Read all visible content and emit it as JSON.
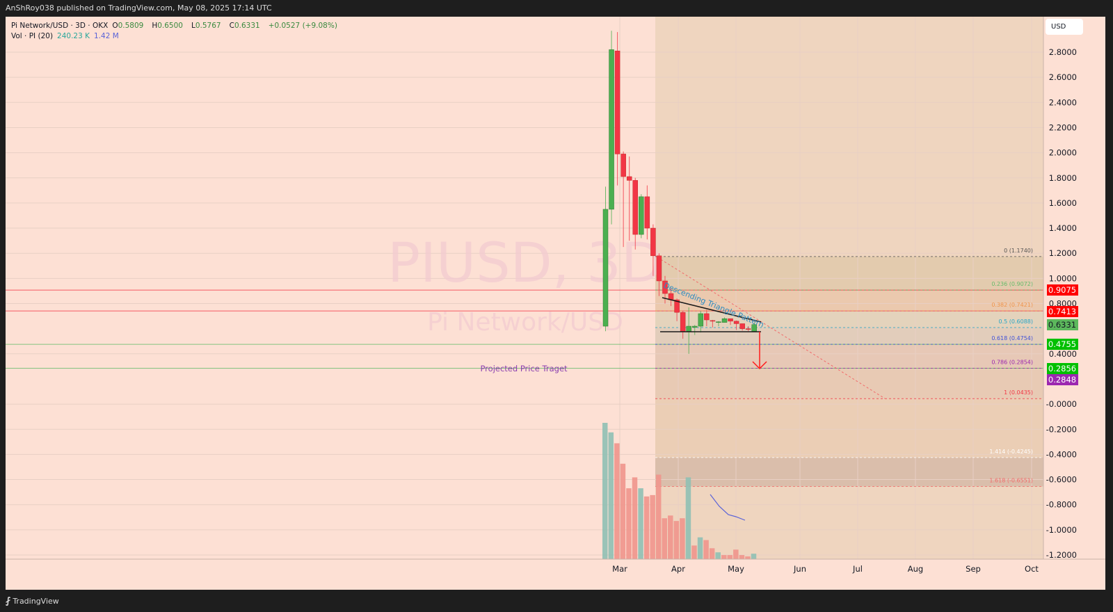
{
  "header": {
    "published_line": "AnShRoy038 published on TradingView.com, May 08, 2025 17:14 UTC"
  },
  "legend": {
    "symbol_line": "Pi Network/USD · 3D · OKX",
    "open_label": "O",
    "open": "0.5809",
    "high_label": "H",
    "high": "0.6500",
    "low_label": "L",
    "low": "0.5767",
    "close_label": "C",
    "close": "0.6331",
    "change": "+0.0527 (+9.08%)",
    "vol_label": "Vol · PI (20)",
    "vol_value": "240.23 K",
    "vol_ma": "1.42 M"
  },
  "currency_button": "USD",
  "watermark": {
    "ticker": "PIUSD, 3D",
    "name": "Pi Network/USD"
  },
  "footer": {
    "brand": "TradingView"
  },
  "annotations": {
    "pattern_label": "Descending Triangle Pattern",
    "target_label": "Projected Price Traget"
  },
  "colors": {
    "background": "#fde0d4",
    "up": "#4caf50",
    "down": "#f23645",
    "vol_up": "#8fc0b4",
    "vol_down": "#f0958c",
    "fib_zone": "#e8c9a8"
  },
  "chart_data": {
    "type": "candlestick",
    "title": "Pi Network/USD · 3D · OKX",
    "x_ticks": [
      "Mar",
      "Apr",
      "May",
      "Jun",
      "Jul",
      "Aug",
      "Sep",
      "Oct"
    ],
    "y_ticks": [
      "2.8000",
      "2.6000",
      "2.4000",
      "2.2000",
      "2.0000",
      "1.8000",
      "1.6000",
      "1.4000",
      "1.2000",
      "1.0000",
      "0.8000",
      "0.4000",
      "-0.0000",
      "-0.2000",
      "-0.4000",
      "-0.6000",
      "-0.8000",
      "-1.0000",
      "-1.2000"
    ],
    "ylim": [
      -1.25,
      3.0
    ],
    "price_labels": [
      {
        "value": "0.9075",
        "color": "#ff0000"
      },
      {
        "value": "0.7413",
        "color": "#ff0000"
      },
      {
        "value": "0.6331",
        "color": "#5cb85c"
      },
      {
        "value": "0.4755",
        "color": "#00c000"
      },
      {
        "value": "0.2856",
        "color": "#00c000"
      },
      {
        "value": "0.2848",
        "color": "#9c27b0"
      }
    ],
    "horizontal_lines": [
      {
        "price": 0.9075,
        "color": "#f23645"
      },
      {
        "price": 0.7413,
        "color": "#f23645"
      },
      {
        "price": 0.4755,
        "color": "#66bb6a"
      },
      {
        "price": 0.2856,
        "color": "#66bb6a"
      }
    ],
    "fib_levels": [
      {
        "ratio": "0",
        "label": "0 (1.1740)",
        "price": 1.174,
        "color": "#555555"
      },
      {
        "ratio": "0.236",
        "label": "0.236 (0.9072)",
        "price": 0.9072,
        "color": "#66bb6a"
      },
      {
        "ratio": "0.382",
        "label": "0.382 (0.7421)",
        "price": 0.7421,
        "color": "#f0954a"
      },
      {
        "ratio": "0.5",
        "label": "0.5 (0.6088)",
        "price": 0.6088,
        "color": "#26a6c8"
      },
      {
        "ratio": "0.618",
        "label": "0.618 (0.4754)",
        "price": 0.4754,
        "color": "#3f51d8"
      },
      {
        "ratio": "0.786",
        "label": "0.786 (0.2854)",
        "price": 0.2854,
        "color": "#9c27b0"
      },
      {
        "ratio": "1",
        "label": "1 (0.0435)",
        "price": 0.0435,
        "color": "#f23645"
      },
      {
        "ratio": "1.414",
        "label": "1.414 (-0.4245)",
        "price": -0.4245,
        "color": "#ffffff"
      },
      {
        "ratio": "1.618",
        "label": "1.618 (-0.6551)",
        "price": -0.6551,
        "color": "#f26a6a"
      }
    ],
    "candles": [
      {
        "o": 0.62,
        "h": 1.73,
        "l": 0.58,
        "c": 1.55
      },
      {
        "o": 1.55,
        "h": 2.97,
        "l": 1.43,
        "c": 2.82
      },
      {
        "o": 2.81,
        "h": 2.96,
        "l": 1.74,
        "c": 1.99
      },
      {
        "o": 1.99,
        "h": 2.01,
        "l": 1.25,
        "c": 1.81
      },
      {
        "o": 1.81,
        "h": 1.97,
        "l": 1.3,
        "c": 1.78
      },
      {
        "o": 1.78,
        "h": 1.8,
        "l": 1.23,
        "c": 1.35
      },
      {
        "o": 1.35,
        "h": 1.67,
        "l": 1.32,
        "c": 1.65
      },
      {
        "o": 1.65,
        "h": 1.74,
        "l": 1.31,
        "c": 1.4
      },
      {
        "o": 1.4,
        "h": 1.43,
        "l": 1.02,
        "c": 1.18
      },
      {
        "o": 1.18,
        "h": 1.2,
        "l": 0.86,
        "c": 0.98
      },
      {
        "o": 0.98,
        "h": 1.02,
        "l": 0.8,
        "c": 0.88
      },
      {
        "o": 0.88,
        "h": 0.92,
        "l": 0.78,
        "c": 0.83
      },
      {
        "o": 0.83,
        "h": 0.84,
        "l": 0.66,
        "c": 0.73
      },
      {
        "o": 0.73,
        "h": 0.74,
        "l": 0.52,
        "c": 0.58
      },
      {
        "o": 0.58,
        "h": 0.77,
        "l": 0.4,
        "c": 0.62
      },
      {
        "o": 0.61,
        "h": 0.63,
        "l": 0.55,
        "c": 0.62
      },
      {
        "o": 0.62,
        "h": 0.74,
        "l": 0.57,
        "c": 0.72
      },
      {
        "o": 0.72,
        "h": 0.75,
        "l": 0.62,
        "c": 0.67
      },
      {
        "o": 0.665,
        "h": 0.67,
        "l": 0.61,
        "c": 0.66
      },
      {
        "o": 0.65,
        "h": 0.66,
        "l": 0.62,
        "c": 0.655
      },
      {
        "o": 0.65,
        "h": 0.69,
        "l": 0.65,
        "c": 0.68
      },
      {
        "o": 0.68,
        "h": 0.68,
        "l": 0.63,
        "c": 0.66
      },
      {
        "o": 0.66,
        "h": 0.665,
        "l": 0.59,
        "c": 0.64
      },
      {
        "o": 0.64,
        "h": 0.64,
        "l": 0.585,
        "c": 0.6
      },
      {
        "o": 0.6,
        "h": 0.62,
        "l": 0.58,
        "c": 0.595
      },
      {
        "o": 0.58,
        "h": 0.65,
        "l": 0.577,
        "c": 0.633
      }
    ],
    "volume": {
      "series_name": "Vol · PI (20)",
      "bars": [
        {
          "v": 100,
          "up": true
        },
        {
          "v": 93,
          "up": true
        },
        {
          "v": 85,
          "up": false
        },
        {
          "v": 70,
          "up": false
        },
        {
          "v": 52,
          "up": false
        },
        {
          "v": 60,
          "up": false
        },
        {
          "v": 52,
          "up": true
        },
        {
          "v": 46,
          "up": false
        },
        {
          "v": 47,
          "up": false
        },
        {
          "v": 62,
          "up": false
        },
        {
          "v": 30,
          "up": false
        },
        {
          "v": 32,
          "up": false
        },
        {
          "v": 28,
          "up": false
        },
        {
          "v": 30,
          "up": false
        },
        {
          "v": 60,
          "up": true
        },
        {
          "v": 10,
          "up": false
        },
        {
          "v": 16,
          "up": true
        },
        {
          "v": 14,
          "up": false
        },
        {
          "v": 8,
          "up": false
        },
        {
          "v": 5,
          "up": true
        },
        {
          "v": 3,
          "up": false
        },
        {
          "v": 3,
          "up": false
        },
        {
          "v": 7,
          "up": false
        },
        {
          "v": 3,
          "up": false
        },
        {
          "v": 2,
          "up": false
        },
        {
          "v": 4,
          "up": true
        }
      ],
      "ma_line": [
        [
          1021,
          711
        ],
        [
          1034,
          728
        ],
        [
          1047,
          740
        ],
        [
          1058,
          743
        ],
        [
          1071,
          748
        ]
      ]
    }
  }
}
